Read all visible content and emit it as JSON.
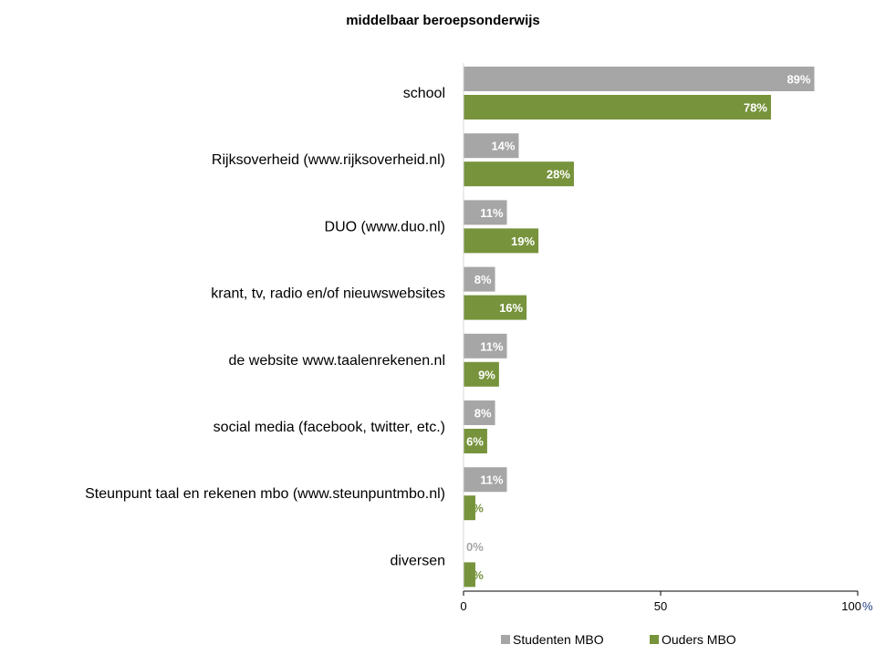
{
  "chart_data": {
    "type": "bar",
    "orientation": "horizontal",
    "title": "middelbaar beroepsonderwijs",
    "categories": [
      "school",
      "Rijksoverheid (www.rijksoverheid.nl)",
      "DUO (www.duo.nl)",
      "krant, tv, radio en/of nieuwswebsites",
      "de website www.taalenrekenen.nl",
      "social media (facebook, twitter, etc.)",
      "Steunpunt taal en rekenen mbo (www.steunpuntmbo.nl)",
      "diversen"
    ],
    "series": [
      {
        "name": "Studenten MBO",
        "color": "#a6a6a6",
        "values": [
          89,
          14,
          11,
          8,
          11,
          8,
          11,
          0
        ],
        "labels": [
          "89%",
          "14%",
          "11%",
          "8%",
          "11%",
          "8%",
          "11%",
          "0%"
        ]
      },
      {
        "name": "Ouders MBO",
        "color": "#77933c",
        "values": [
          78,
          28,
          19,
          16,
          9,
          6,
          3,
          3
        ],
        "labels": [
          "78%",
          "28%",
          "19%",
          "16%",
          "9%",
          "6%",
          "3%",
          "3%"
        ]
      }
    ],
    "xlim": [
      0,
      100
    ],
    "xticks": [
      "0",
      "50",
      "100"
    ],
    "xunit": "%",
    "unit_color": "#1f3c88",
    "grid": false,
    "legend_position": "bottom"
  }
}
